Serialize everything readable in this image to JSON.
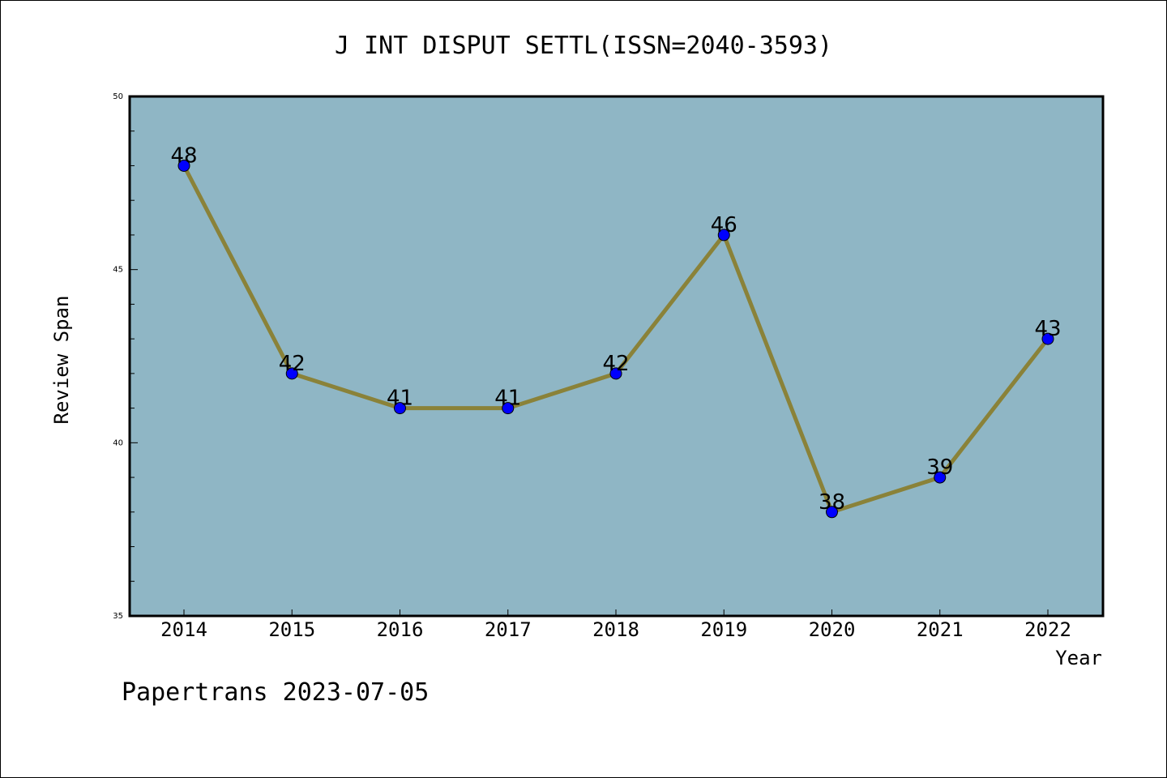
{
  "chart_data": {
    "type": "line",
    "title": "J INT DISPUT SETTL(ISSN=2040-3593)",
    "xlabel": "Year",
    "ylabel": "Review Span",
    "categories": [
      "2014",
      "2015",
      "2016",
      "2017",
      "2018",
      "2019",
      "2020",
      "2021",
      "2022"
    ],
    "series": [
      {
        "values": [
          48,
          42,
          41,
          41,
          42,
          46,
          38,
          39,
          43
        ]
      }
    ],
    "ylim": [
      35,
      50
    ],
    "yticks": [
      "35",
      "40",
      "45",
      "50"
    ],
    "grid": false,
    "plot_background": "#8fb6c5",
    "line_color": "#8a8239",
    "marker_color": "#0000ff"
  },
  "footer": "Papertrans 2023-07-05"
}
